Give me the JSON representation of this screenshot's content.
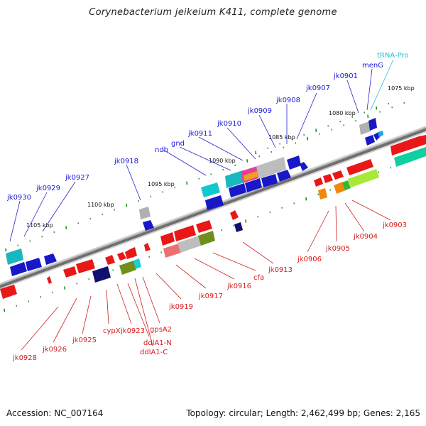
{
  "title": "Corynebacterium jeikeium K411, complete genome",
  "footer": {
    "accession": "Accession: NC_007164",
    "topology": "Topology: circular; Length: 2,462,499 bp; Genes: 2,165"
  },
  "colors": {
    "forward_label": "#1a1ad8",
    "reverse_label": "#d81a1a",
    "trna_label": "#22c0dc",
    "leader_line_forward": "#2222cc",
    "leader_line_reverse": "#cc2222",
    "backbone": "#7a7a7a",
    "tick": "#1f8f1f"
  },
  "scale_labels": [
    "1075 kbp",
    "1080 kbp",
    "1085 kbp",
    "1090 kbp",
    "1095 kbp",
    "1100 kbp",
    "1105 kbp"
  ],
  "forward_genes": [
    "jk0930",
    "jk0929",
    "jk0927",
    "jk0918",
    "ndh",
    "gnd",
    "jk0911",
    "jk0910",
    "jk0909",
    "jk0908",
    "jk0907",
    "jk0901",
    "menG"
  ],
  "trna_genes": [
    "tRNA-Pro"
  ],
  "reverse_genes": [
    "jk0928",
    "jk0926",
    "jk0925",
    "cypX",
    "jk0923",
    "ddlA1-N",
    "ddlA1-C",
    "gpsA2",
    "jk0919",
    "jk0917",
    "jk0916",
    "cfa",
    "jk0913",
    "jk0906",
    "jk0905",
    "jk0904",
    "jk0903"
  ]
}
